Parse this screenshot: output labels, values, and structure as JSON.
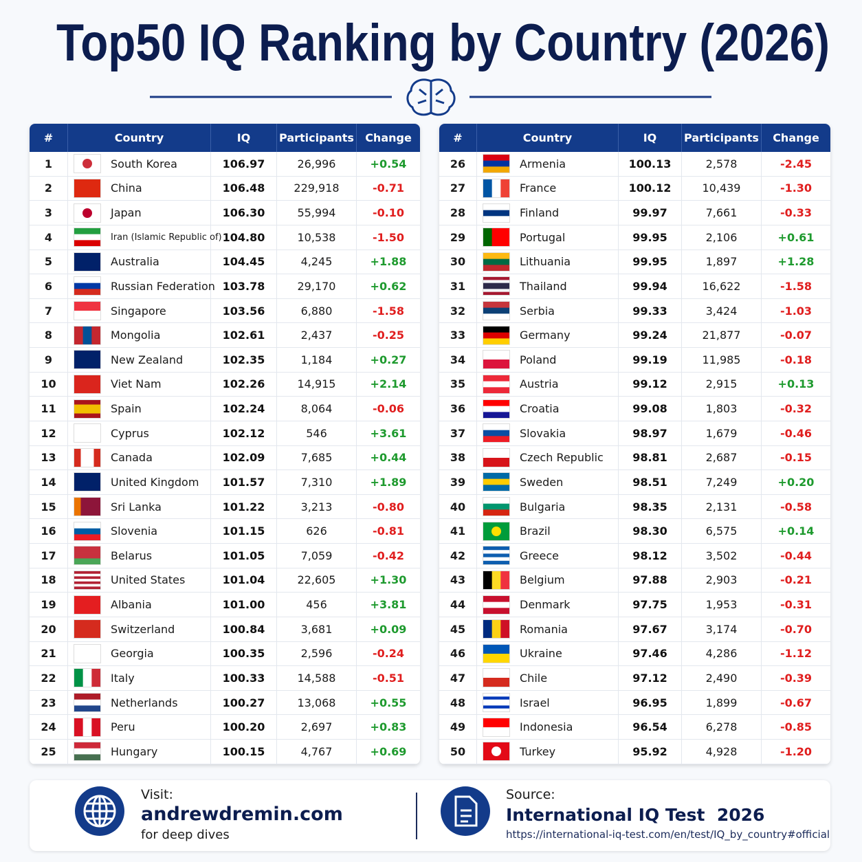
{
  "header": {
    "title": "Top50 IQ Ranking by Country (2026)"
  },
  "tables": [
    {
      "columns": [
        "#",
        "Country",
        "IQ",
        "Participants",
        "Change"
      ],
      "rows": [
        [
          "1",
          "South Korea",
          "106.97",
          "26,996",
          "+0.54"
        ],
        [
          "2",
          "China",
          "106.48",
          "229,918",
          "-0.71"
        ],
        [
          "3",
          "Japan",
          "106.30",
          "55,994",
          "-0.10"
        ],
        [
          "4",
          "Iran (Islamic Republic of)",
          "104.80",
          "10,538",
          "-1.50"
        ],
        [
          "5",
          "Australia",
          "104.45",
          "4,245",
          "+1.88"
        ],
        [
          "6",
          "Russian Federation",
          "103.78",
          "29,170",
          "+0.62"
        ],
        [
          "7",
          "Singapore",
          "103.56",
          "6,880",
          "-1.58"
        ],
        [
          "8",
          "Mongolia",
          "102.61",
          "2,437",
          "-0.25"
        ],
        [
          "9",
          "New Zealand",
          "102.35",
          "1,184",
          "+0.27"
        ],
        [
          "10",
          "Viet Nam",
          "102.26",
          "14,915",
          "+2.14"
        ],
        [
          "11",
          "Spain",
          "102.24",
          "8,064",
          "-0.06"
        ],
        [
          "12",
          "Cyprus",
          "102.12",
          "546",
          "+3.61"
        ],
        [
          "13",
          "Canada",
          "102.09",
          "7,685",
          "+0.44"
        ],
        [
          "14",
          "United Kingdom",
          "101.57",
          "7,310",
          "+1.89"
        ],
        [
          "15",
          "Sri Lanka",
          "101.22",
          "3,213",
          "-0.80"
        ],
        [
          "16",
          "Slovenia",
          "101.15",
          "626",
          "-0.81"
        ],
        [
          "17",
          "Belarus",
          "101.05",
          "7,059",
          "-0.42"
        ],
        [
          "18",
          "United States",
          "101.04",
          "22,605",
          "+1.30"
        ],
        [
          "19",
          "Albania",
          "101.00",
          "456",
          "+3.81"
        ],
        [
          "20",
          "Switzerland",
          "100.84",
          "3,681",
          "+0.09"
        ],
        [
          "21",
          "Georgia",
          "100.35",
          "2,596",
          "-0.24"
        ],
        [
          "22",
          "Italy",
          "100.33",
          "14,588",
          "-0.51"
        ],
        [
          "23",
          "Netherlands",
          "100.27",
          "13,068",
          "+0.55"
        ],
        [
          "24",
          "Peru",
          "100.20",
          "2,697",
          "+0.83"
        ],
        [
          "25",
          "Hungary",
          "100.15",
          "4,767",
          "+0.69"
        ]
      ]
    },
    {
      "columns": [
        "#",
        "Country",
        "IQ",
        "Participants",
        "Change"
      ],
      "rows": [
        [
          "26",
          "Armenia",
          "100.13",
          "2,578",
          "-2.45"
        ],
        [
          "27",
          "France",
          "100.12",
          "10,439",
          "-1.30"
        ],
        [
          "28",
          "Finland",
          "99.97",
          "7,661",
          "-0.33"
        ],
        [
          "29",
          "Portugal",
          "99.95",
          "2,106",
          "+0.61"
        ],
        [
          "30",
          "Lithuania",
          "99.95",
          "1,897",
          "+1.28"
        ],
        [
          "31",
          "Thailand",
          "99.94",
          "16,622",
          "-1.58"
        ],
        [
          "32",
          "Serbia",
          "99.33",
          "3,424",
          "-1.03"
        ],
        [
          "33",
          "Germany",
          "99.24",
          "21,877",
          "-0.07"
        ],
        [
          "34",
          "Poland",
          "99.19",
          "11,985",
          "-0.18"
        ],
        [
          "35",
          "Austria",
          "99.12",
          "2,915",
          "+0.13"
        ],
        [
          "36",
          "Croatia",
          "99.08",
          "1,803",
          "-0.32"
        ],
        [
          "37",
          "Slovakia",
          "98.97",
          "1,679",
          "-0.46"
        ],
        [
          "38",
          "Czech Republic",
          "98.81",
          "2,687",
          "-0.15"
        ],
        [
          "39",
          "Sweden",
          "98.51",
          "7,249",
          "+0.20"
        ],
        [
          "40",
          "Bulgaria",
          "98.35",
          "2,131",
          "-0.58"
        ],
        [
          "41",
          "Brazil",
          "98.30",
          "6,575",
          "+0.14"
        ],
        [
          "42",
          "Greece",
          "98.12",
          "3,502",
          "-0.44"
        ],
        [
          "43",
          "Belgium",
          "97.88",
          "2,903",
          "-0.21"
        ],
        [
          "44",
          "Denmark",
          "97.75",
          "1,953",
          "-0.31"
        ],
        [
          "45",
          "Romania",
          "97.67",
          "3,174",
          "-0.70"
        ],
        [
          "46",
          "Ukraine",
          "97.46",
          "4,286",
          "-1.12"
        ],
        [
          "47",
          "Chile",
          "97.12",
          "2,490",
          "-0.39"
        ],
        [
          "48",
          "Israel",
          "96.95",
          "1,899",
          "-0.67"
        ],
        [
          "49",
          "Indonesia",
          "96.54",
          "6,278",
          "-0.85"
        ],
        [
          "50",
          "Turkey",
          "95.92",
          "4,928",
          "-1.20"
        ]
      ]
    }
  ],
  "footer": {
    "visit": {
      "label": "Visit:",
      "site": "andrewdremin.com",
      "note": "for deep dives"
    },
    "source": {
      "label": "Source:",
      "name": "International IQ Test  2026",
      "url": "https://international-iq-test.com/en/test/IQ_by_country#official"
    }
  }
}
